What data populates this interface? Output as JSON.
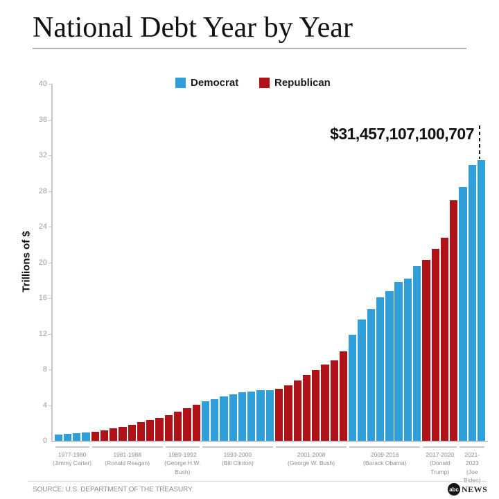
{
  "header": {
    "title": "National Debt Year by Year"
  },
  "annotation": {
    "text": "$31,457,107,100,707"
  },
  "footer": {
    "source": "SOURCE: U.S. DEPARTMENT OF THE TREASURY",
    "logo_abc": "abc",
    "logo_news": "NEWS"
  },
  "chart_data": {
    "type": "bar",
    "title": "National Debt Year by Year",
    "xlabel": "",
    "ylabel": "Trillions of $",
    "ylim": [
      0,
      40
    ],
    "yticks": [
      0,
      4,
      8,
      12,
      16,
      20,
      24,
      28,
      32,
      36,
      40
    ],
    "grid": false,
    "legend_position": "top",
    "legend": [
      {
        "label": "Democrat",
        "color": "#2E9FD9"
      },
      {
        "label": "Republican",
        "color": "#B01218"
      }
    ],
    "year_start": 1977,
    "year_end": 2023,
    "values": [
      0.7,
      0.77,
      0.83,
      0.91,
      1.0,
      1.14,
      1.38,
      1.57,
      1.82,
      2.13,
      2.35,
      2.6,
      2.86,
      3.23,
      3.67,
      4.06,
      4.41,
      4.69,
      4.97,
      5.22,
      5.41,
      5.53,
      5.66,
      5.67,
      5.81,
      6.23,
      6.78,
      7.38,
      7.93,
      8.51,
      9.01,
      10.02,
      11.91,
      13.56,
      14.79,
      16.07,
      16.74,
      17.82,
      18.15,
      19.57,
      20.24,
      21.52,
      22.72,
      26.95,
      28.43,
      30.93,
      31.46
    ],
    "annotation": {
      "text": "$31,457,107,100,707",
      "points_to_year": 2023
    },
    "groups": [
      {
        "label": "1977-1980\n(Jimmy Carter)",
        "party": "Democrat",
        "start": 1977,
        "end": 1980
      },
      {
        "label": "1981-1988\n(Ronald Reagan)",
        "party": "Republican",
        "start": 1981,
        "end": 1988
      },
      {
        "label": "1989-1992\n(George H.W.\nBush)",
        "party": "Republican",
        "start": 1989,
        "end": 1992
      },
      {
        "label": "1993-2000\n(Bill Clinton)",
        "party": "Democrat",
        "start": 1993,
        "end": 2000
      },
      {
        "label": "2001-2008\n(George W. Bush)",
        "party": "Republican",
        "start": 2001,
        "end": 2008
      },
      {
        "label": "2009-2016\n(Barack Obama)",
        "party": "Democrat",
        "start": 2009,
        "end": 2016
      },
      {
        "label": "2017-2020\n(Donald\nTrump)",
        "party": "Republican",
        "start": 2017,
        "end": 2020
      },
      {
        "label": "2021-2023\n(Joe\nBiden)",
        "party": "Democrat",
        "start": 2021,
        "end": 2023
      }
    ]
  }
}
